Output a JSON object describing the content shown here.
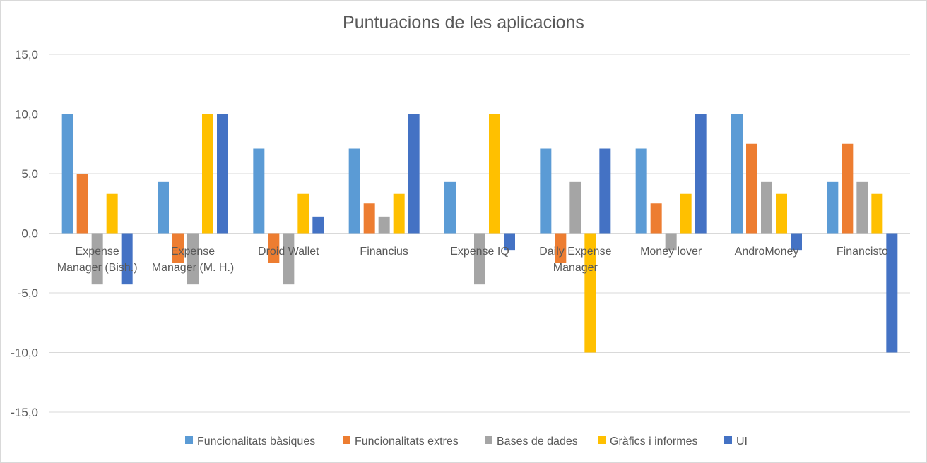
{
  "chart_data": {
    "type": "bar",
    "title": "Puntuacions de les aplicacions",
    "categories": [
      [
        "Expense",
        "Manager (Bish.)"
      ],
      [
        "Expense",
        "Manager (M. H.)"
      ],
      [
        "Droid Wallet"
      ],
      [
        "Financius"
      ],
      [
        "Expense IQ"
      ],
      [
        "Daily Expense",
        "Manager"
      ],
      [
        "Money lover"
      ],
      [
        "AndroMoney"
      ],
      [
        "Financisto"
      ]
    ],
    "series": [
      {
        "name": "Funcionalitats bàsiques",
        "color": "#5b9bd5",
        "values": [
          10.0,
          4.3,
          7.1,
          7.1,
          4.3,
          7.1,
          7.1,
          10.0,
          4.3
        ]
      },
      {
        "name": "Funcionalitats extres",
        "color": "#ed7d31",
        "values": [
          5.0,
          -2.5,
          -2.5,
          2.5,
          0.0,
          -2.5,
          2.5,
          7.5,
          7.5
        ]
      },
      {
        "name": "Bases de dades",
        "color": "#a5a5a5",
        "values": [
          -4.3,
          -4.3,
          -4.3,
          1.4,
          -4.3,
          4.3,
          -1.4,
          4.3,
          4.3
        ]
      },
      {
        "name": "Gràfics i informes",
        "color": "#ffc000",
        "values": [
          3.3,
          10.0,
          3.3,
          3.3,
          10.0,
          -10.0,
          3.3,
          3.3,
          3.3
        ]
      },
      {
        "name": "UI",
        "color": "#4472c4",
        "values": [
          -4.3,
          10.0,
          1.4,
          10.0,
          -1.4,
          7.1,
          10.0,
          -1.4,
          -10.0
        ]
      }
    ],
    "yticks": [
      "15,0",
      "10,0",
      "5,0",
      "0,0",
      "-5,0",
      "-10,0",
      "-15,0"
    ],
    "ylim": [
      -15,
      15
    ],
    "grid": true,
    "legend_position": "bottom"
  }
}
